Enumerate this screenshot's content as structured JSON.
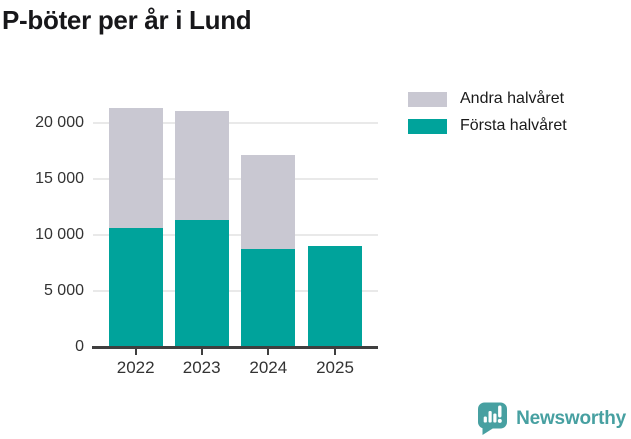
{
  "title": "P-böter per år i Lund",
  "legend": {
    "items": [
      {
        "label": "Andra halvåret",
        "color": "#c9c8d2"
      },
      {
        "label": "Första halvåret",
        "color": "#00a39b"
      }
    ]
  },
  "chart_data": {
    "type": "bar",
    "stacked": true,
    "title": "P-böter per år i Lund",
    "categories": [
      "2022",
      "2023",
      "2024",
      "2025"
    ],
    "series": [
      {
        "name": "Första halvåret",
        "color": "#00a39b",
        "values": [
          10600,
          11400,
          8800,
          9000
        ]
      },
      {
        "name": "Andra halvåret",
        "color": "#c9c8d2",
        "values": [
          10800,
          9700,
          8400,
          0
        ]
      }
    ],
    "totals": [
      21400,
      21100,
      17200,
      9000
    ],
    "ylim": [
      0,
      21500
    ],
    "yticks": [
      {
        "value": 0,
        "label": "0"
      },
      {
        "value": 5000,
        "label": "5 000"
      },
      {
        "value": 10000,
        "label": "10 000"
      },
      {
        "value": 15000,
        "label": "15 000"
      },
      {
        "value": 20000,
        "label": "20 000"
      }
    ],
    "grid": "horizontal",
    "legend_position": "top-right"
  },
  "brand": {
    "name": "Newsworthy",
    "color": "#47a0a1"
  }
}
